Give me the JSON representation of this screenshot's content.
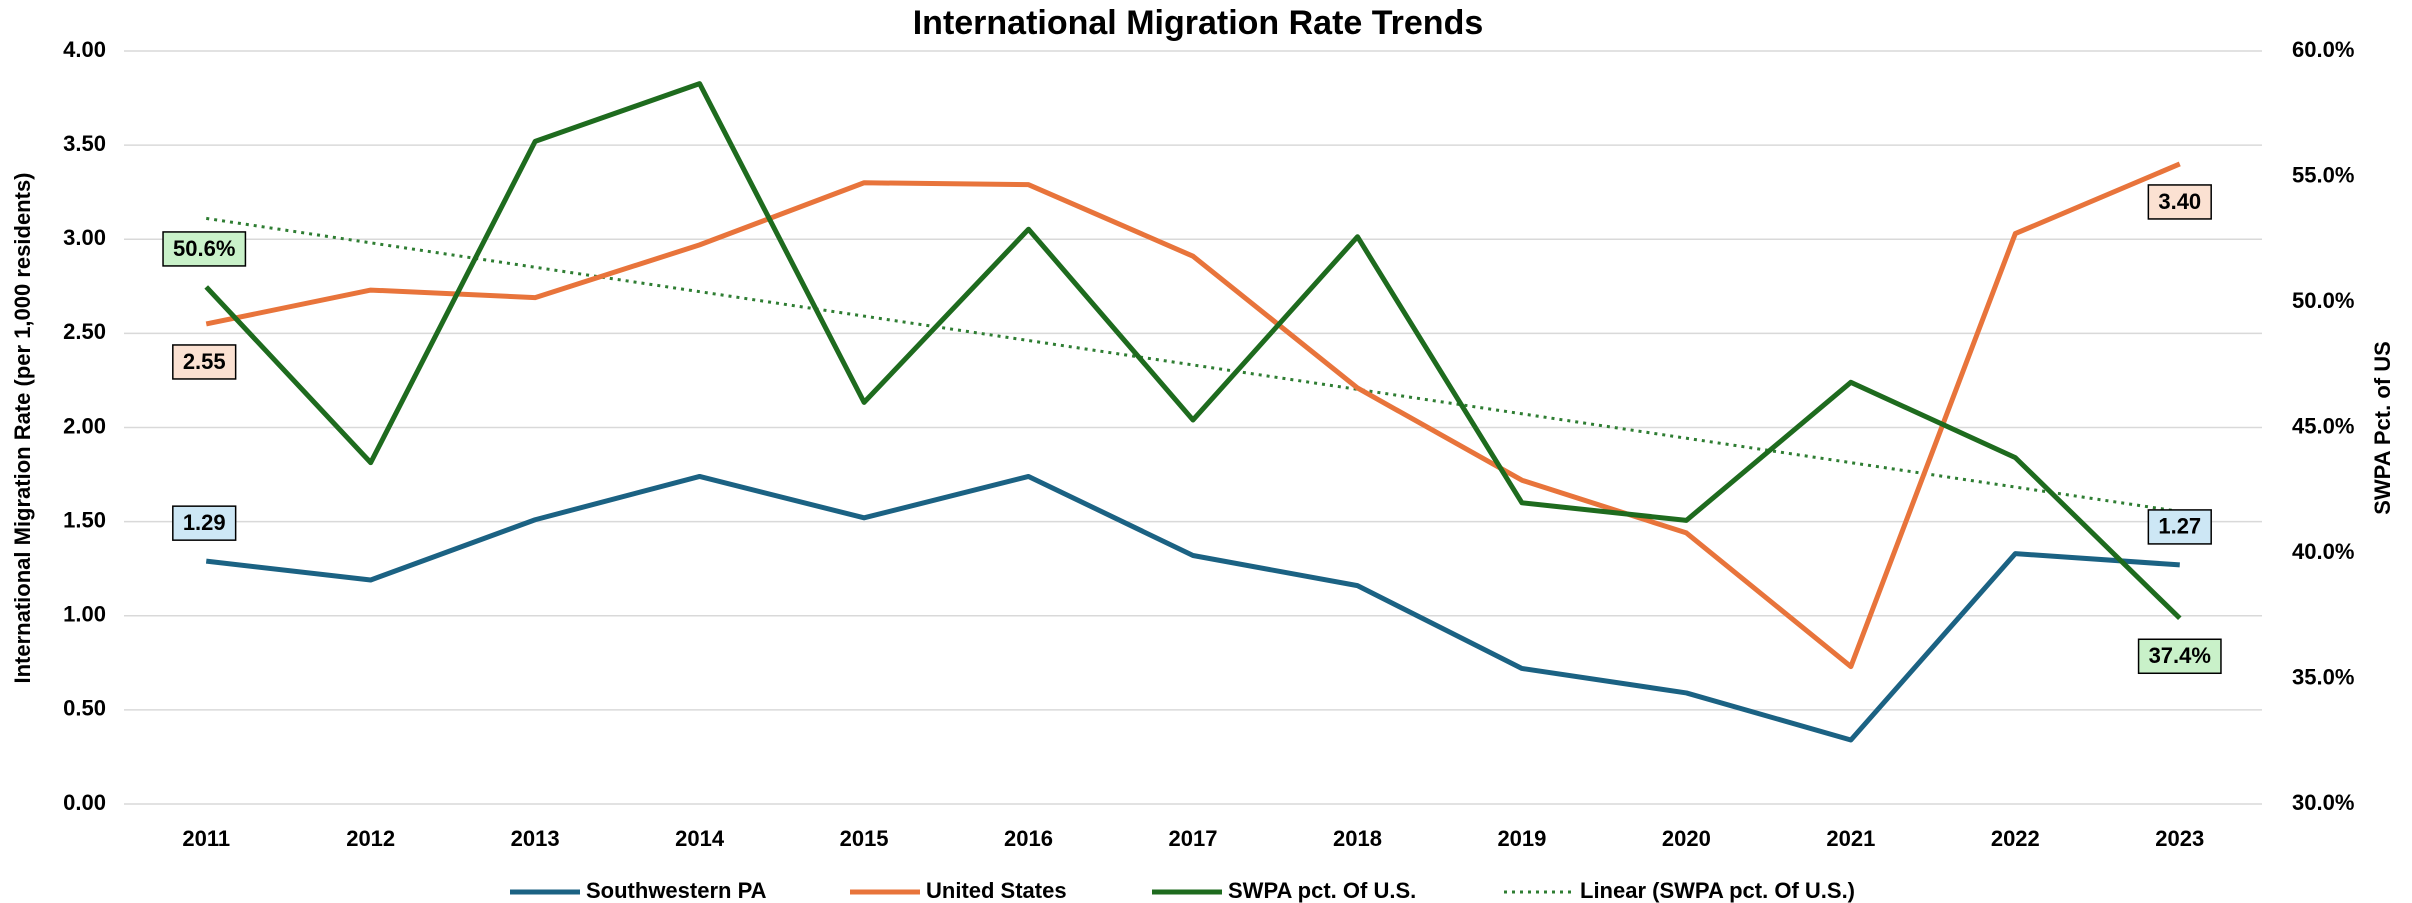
{
  "chart_data": {
    "type": "line",
    "title": "International Migration Rate Trends",
    "y_label": "International Migration Rate (per 1,000 residents)",
    "y2_label": "SWPA Pct. of US",
    "categories": [
      "2011",
      "2012",
      "2013",
      "2014",
      "2015",
      "2016",
      "2017",
      "2018",
      "2019",
      "2020",
      "2021",
      "2022",
      "2023"
    ],
    "ylim": [
      0,
      4
    ],
    "yticks": [
      {
        "value": 0,
        "label": "0.00"
      },
      {
        "value": 0.5,
        "label": "0.50"
      },
      {
        "value": 1,
        "label": "1.00"
      },
      {
        "value": 1.5,
        "label": "1.50"
      },
      {
        "value": 2,
        "label": "2.00"
      },
      {
        "value": 2.5,
        "label": "2.50"
      },
      {
        "value": 3,
        "label": "3.00"
      },
      {
        "value": 3.5,
        "label": "3.50"
      },
      {
        "value": 4,
        "label": "4.00"
      }
    ],
    "y2lim": [
      30,
      60
    ],
    "y2ticks": [
      {
        "value": 30,
        "label": "30.0%"
      },
      {
        "value": 35,
        "label": "35.0%"
      },
      {
        "value": 40,
        "label": "40.0%"
      },
      {
        "value": 45,
        "label": "45.0%"
      },
      {
        "value": 50,
        "label": "50.0%"
      },
      {
        "value": 55,
        "label": "55.0%"
      },
      {
        "value": 60,
        "label": "60.0%"
      }
    ],
    "grid": true,
    "legend": "bottom",
    "series": [
      {
        "name": "Southwestern PA",
        "color": "#1b6283",
        "label_color": "#cde7f5",
        "values": [
          1.29,
          1.19,
          1.51,
          1.74,
          1.52,
          1.74,
          1.32,
          1.16,
          0.72,
          0.59,
          0.34,
          1.33,
          1.27
        ],
        "value_labels": [
          "1.29",
          null,
          null,
          null,
          null,
          null,
          null,
          null,
          null,
          null,
          null,
          null,
          "1.27"
        ]
      },
      {
        "name": "United States",
        "color": "#e8743b",
        "label_color": "#fbe1d2",
        "values": [
          2.55,
          2.73,
          2.69,
          2.97,
          3.3,
          3.29,
          2.91,
          2.21,
          1.72,
          1.44,
          0.73,
          3.03,
          3.4
        ],
        "value_labels": [
          "2.55",
          null,
          null,
          null,
          null,
          null,
          null,
          null,
          null,
          null,
          null,
          null,
          "3.40"
        ]
      },
      {
        "name": "SWPA pct. Of U.S.",
        "color": "#1e6b1e",
        "label_color": "#c9f1c9",
        "axis": "y2",
        "values": [
          50.6,
          43.6,
          56.4,
          58.7,
          46.0,
          52.9,
          45.3,
          52.6,
          42.0,
          41.3,
          46.8,
          43.8,
          37.4
        ],
        "value_labels": [
          "50.6%",
          null,
          null,
          null,
          null,
          null,
          null,
          null,
          null,
          null,
          null,
          null,
          "37.4%"
        ],
        "trendline": {
          "name": "Linear (SWPA pct. Of U.S.)",
          "color": "#2e7d32"
        }
      }
    ]
  }
}
